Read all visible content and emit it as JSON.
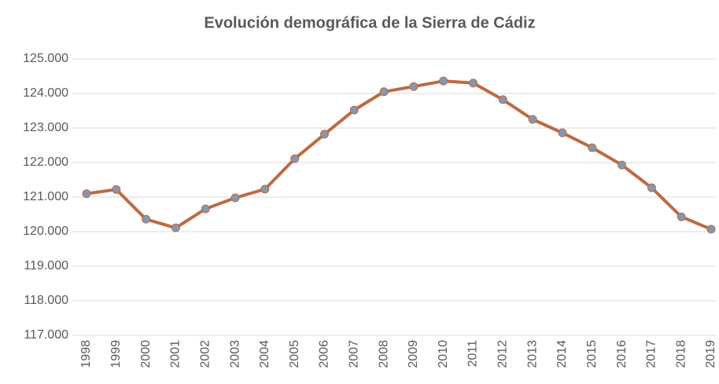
{
  "chart_data": {
    "type": "line",
    "title": "Evolución demográfica de la Sierra de Cádiz",
    "categories": [
      "1998",
      "1999",
      "2000",
      "2001",
      "2002",
      "2003",
      "2004",
      "2005",
      "2006",
      "2007",
      "2008",
      "2009",
      "2010",
      "2011",
      "2012",
      "2013",
      "2014",
      "2015",
      "2016",
      "2017",
      "2018",
      "2019"
    ],
    "values": [
      121100,
      121220,
      120360,
      120110,
      120660,
      120980,
      121230,
      122110,
      122820,
      123520,
      124050,
      124200,
      124360,
      124300,
      123820,
      123250,
      122860,
      122430,
      121930,
      121270,
      120430,
      120070
    ],
    "color": "#be6a43",
    "marker_color": "#8497b0",
    "ylim": [
      117000,
      125000
    ],
    "yticks": [
      {
        "value": 117000,
        "label": "117.000"
      },
      {
        "value": 118000,
        "label": "118.000"
      },
      {
        "value": 119000,
        "label": "119.000"
      },
      {
        "value": 120000,
        "label": "120.000"
      },
      {
        "value": 121000,
        "label": "121.000"
      },
      {
        "value": 122000,
        "label": "122.000"
      },
      {
        "value": 123000,
        "label": "123.000"
      },
      {
        "value": 124000,
        "label": "124.000"
      },
      {
        "value": 125000,
        "label": "125.000"
      }
    ],
    "grid": true
  }
}
